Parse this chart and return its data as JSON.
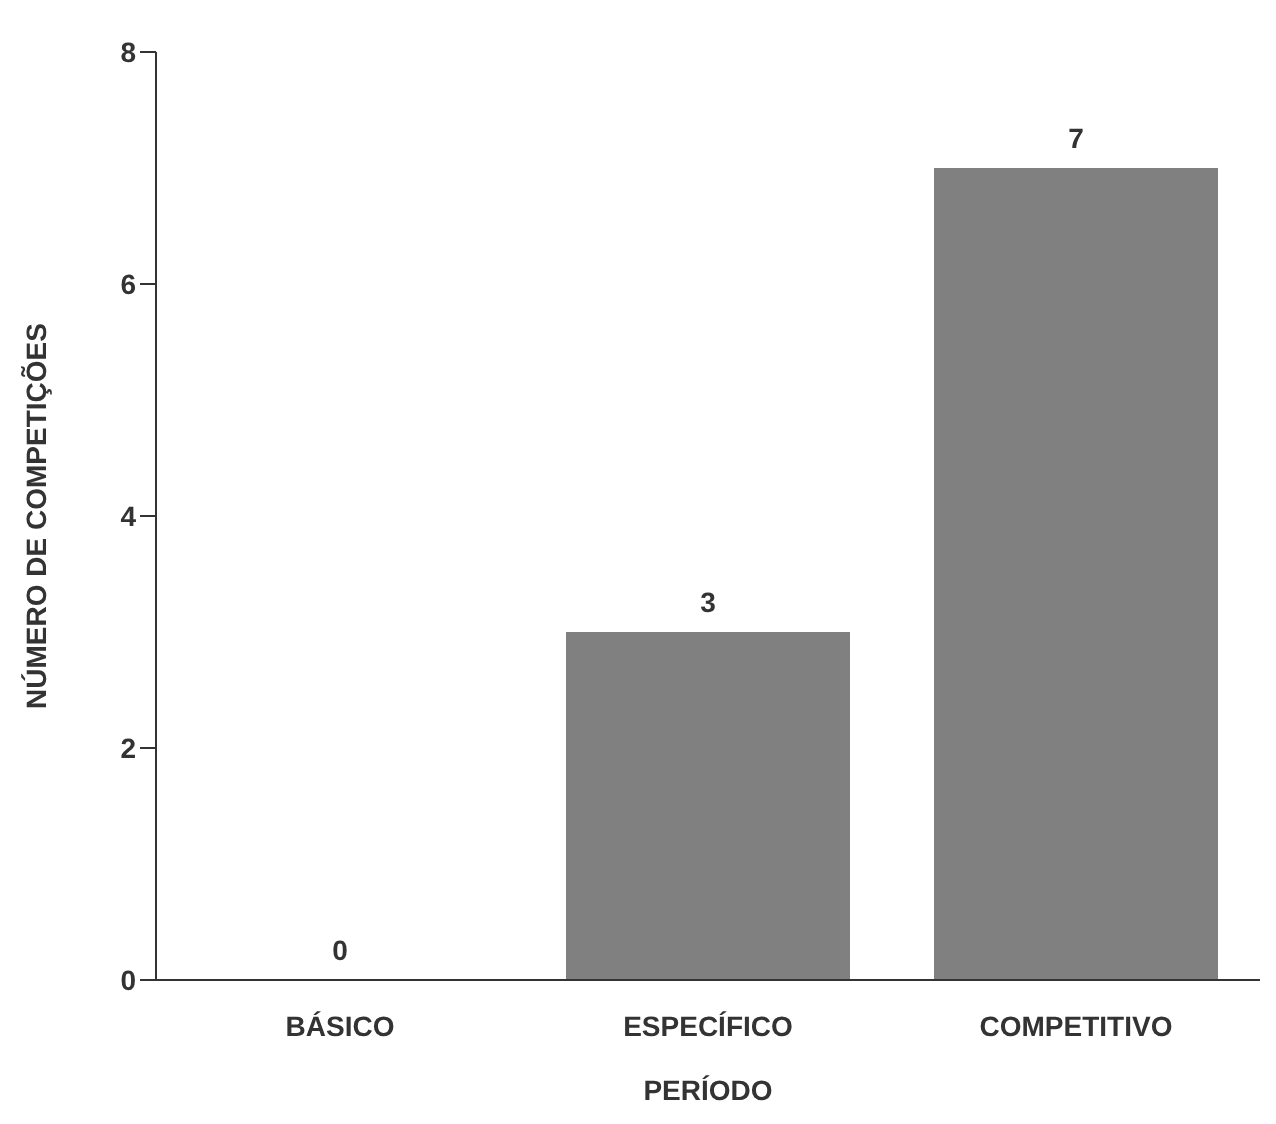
{
  "chart_data": {
    "type": "bar",
    "xlabel": "PERÍODO",
    "ylabel": "NÚMERO DE COMPETIÇÕES",
    "categories": [
      "BÁSICO",
      "ESPECÍFICO",
      "COMPETITIVO"
    ],
    "values": [
      0,
      3,
      7
    ],
    "color": "#808080",
    "ylim": [
      0,
      8
    ],
    "yticks": [
      0,
      2,
      4,
      6,
      8
    ],
    "grid": false,
    "data_labels": true
  }
}
